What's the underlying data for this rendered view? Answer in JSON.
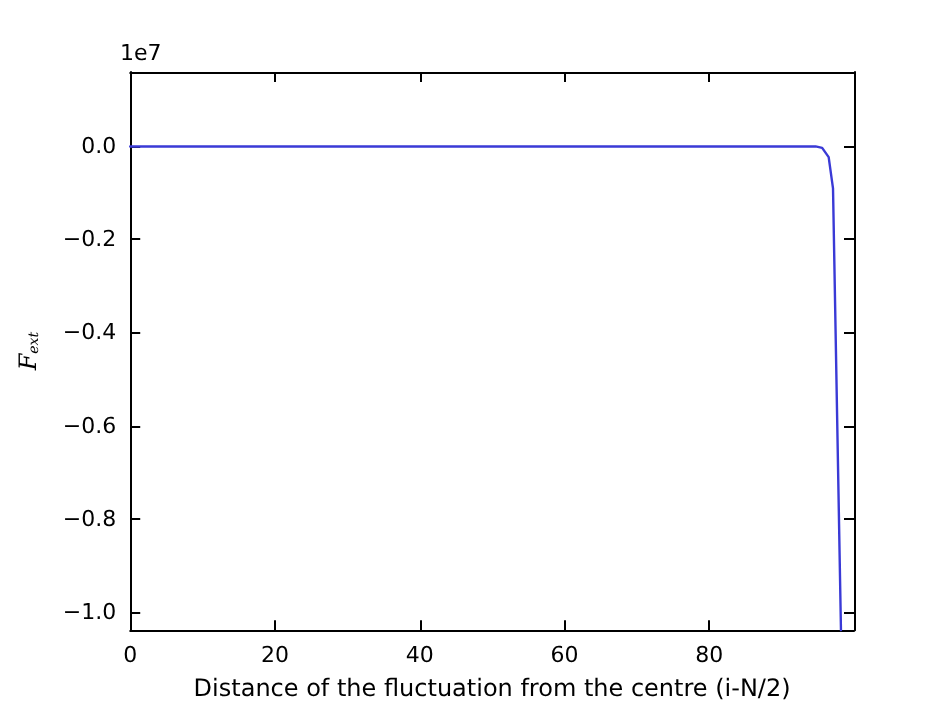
{
  "chart_data": {
    "type": "line",
    "xlabel": "Distance of the fluctuation from the centre (i-N/2)",
    "ylabel": "F$_{ext}$",
    "annotations": [
      "1e7"
    ],
    "x": [
      0,
      10,
      20,
      30,
      40,
      50,
      60,
      70,
      80,
      90,
      94.7,
      95.6,
      96.5,
      97.1,
      98.2
    ],
    "series": [
      {
        "color": "#3a3ad6",
        "values": [
          0,
          0,
          0,
          0,
          0,
          0,
          0,
          0,
          0,
          0,
          0,
          -0.003,
          -0.023,
          -0.09,
          -1.04
        ]
      }
    ],
    "xlim": [
      0,
      100
    ],
    "xticks": [
      0,
      20,
      40,
      60,
      80
    ],
    "ylim": [
      -1.04,
      0.16
    ],
    "yticks": [
      {
        "value": 0,
        "label": "0.0"
      },
      {
        "value": -0.2,
        "label": "−0.2"
      },
      {
        "value": -0.4,
        "label": "−0.4"
      },
      {
        "value": -0.6,
        "label": "−0.6"
      },
      {
        "value": -0.8,
        "label": "−0.8"
      },
      {
        "value": -1.0,
        "label": "−1.0"
      }
    ],
    "grid": false,
    "marker": "none",
    "line_style": "solid"
  }
}
